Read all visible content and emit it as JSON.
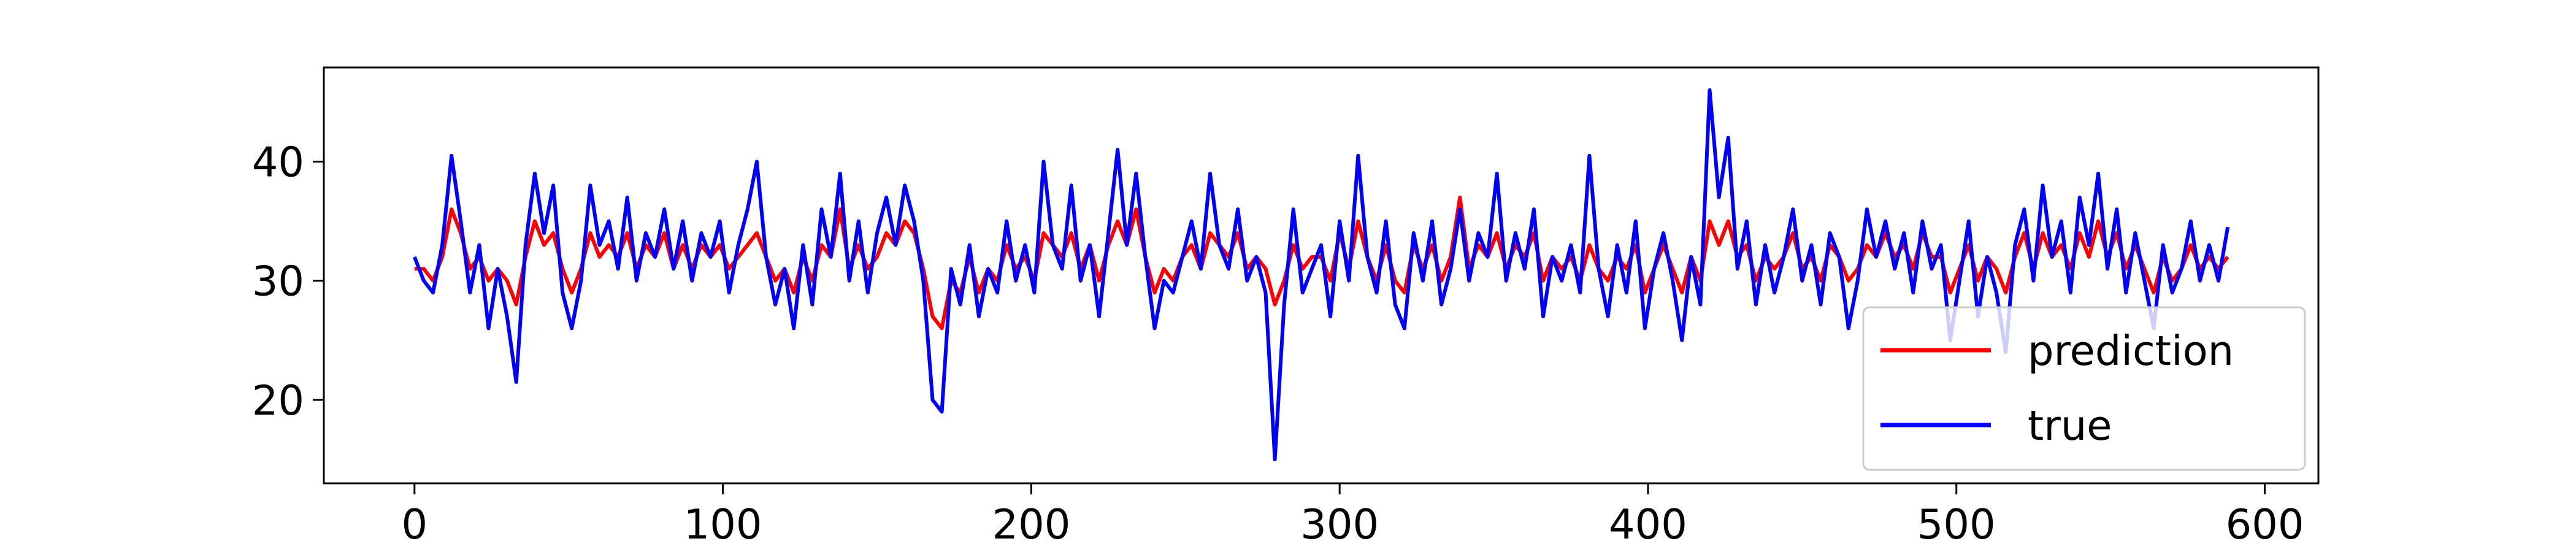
{
  "chart_data": {
    "type": "line",
    "x": [
      0,
      3,
      6,
      9,
      12,
      15,
      18,
      21,
      24,
      27,
      30,
      33,
      36,
      39,
      42,
      45,
      48,
      51,
      54,
      57,
      60,
      63,
      66,
      69,
      72,
      75,
      78,
      81,
      84,
      87,
      90,
      93,
      96,
      99,
      102,
      105,
      108,
      111,
      114,
      117,
      120,
      123,
      126,
      129,
      132,
      135,
      138,
      141,
      144,
      147,
      150,
      153,
      156,
      159,
      162,
      165,
      168,
      171,
      174,
      177,
      180,
      183,
      186,
      189,
      192,
      195,
      198,
      201,
      204,
      207,
      210,
      213,
      216,
      219,
      222,
      225,
      228,
      231,
      234,
      237,
      240,
      243,
      246,
      249,
      252,
      255,
      258,
      261,
      264,
      267,
      270,
      273,
      276,
      279,
      282,
      285,
      288,
      291,
      294,
      297,
      300,
      303,
      306,
      309,
      312,
      315,
      318,
      321,
      324,
      327,
      330,
      333,
      336,
      339,
      342,
      345,
      348,
      351,
      354,
      357,
      360,
      363,
      366,
      369,
      372,
      375,
      378,
      381,
      384,
      387,
      390,
      393,
      396,
      399,
      402,
      405,
      408,
      411,
      414,
      417,
      420,
      423,
      426,
      429,
      432,
      435,
      438,
      441,
      444,
      447,
      450,
      453,
      456,
      459,
      462,
      465,
      468,
      471,
      474,
      477,
      480,
      483,
      486,
      489,
      492,
      495,
      498,
      501,
      504,
      507,
      510,
      513,
      516,
      519,
      522,
      525,
      528,
      531,
      534,
      537,
      540,
      543,
      546,
      549,
      552,
      555,
      558,
      561,
      564,
      567,
      570,
      573,
      576,
      579,
      582,
      585,
      588
    ],
    "series": [
      {
        "name": "prediction",
        "color": "#ff0000",
        "values": [
          31,
          31,
          30,
          32,
          36,
          34,
          31,
          32,
          30,
          31,
          30,
          28,
          32,
          35,
          33,
          34,
          31,
          29,
          31,
          34,
          32,
          33,
          32,
          34,
          31,
          33,
          32,
          34,
          31,
          33,
          31,
          33,
          32,
          33,
          31,
          32,
          33,
          34,
          32,
          30,
          31,
          29,
          32,
          30,
          33,
          32,
          36,
          31,
          33,
          31,
          32,
          34,
          33,
          35,
          34,
          31,
          27,
          26,
          30,
          29,
          32,
          29,
          31,
          30,
          33,
          31,
          32,
          30,
          34,
          33,
          32,
          34,
          31,
          33,
          30,
          33,
          35,
          33,
          36,
          32,
          29,
          31,
          30,
          32,
          33,
          31,
          34,
          33,
          32,
          34,
          31,
          32,
          31,
          28,
          30,
          33,
          31,
          32,
          32,
          30,
          34,
          31,
          35,
          32,
          30,
          33,
          30,
          29,
          33,
          31,
          33,
          30,
          32,
          37,
          31,
          33,
          32,
          34,
          31,
          33,
          32,
          34,
          30,
          32,
          31,
          32,
          30,
          33,
          31,
          30,
          32,
          31,
          33,
          29,
          31,
          33,
          31,
          29,
          32,
          30,
          35,
          33,
          35,
          32,
          33,
          30,
          32,
          31,
          32,
          34,
          31,
          32,
          30,
          33,
          32,
          30,
          31,
          33,
          32,
          34,
          32,
          33,
          31,
          34,
          32,
          32,
          29,
          31,
          33,
          30,
          32,
          31,
          29,
          32,
          34,
          31,
          34,
          32,
          33,
          31,
          34,
          32,
          35,
          32,
          34,
          31,
          33,
          31,
          29,
          32,
          30,
          31,
          33,
          31,
          32,
          31,
          32
        ]
      },
      {
        "name": "true",
        "color": "#0000ff",
        "values": [
          32,
          30,
          29,
          33,
          40.5,
          35,
          29,
          33,
          26,
          31,
          27,
          21.5,
          33,
          39,
          34,
          38,
          29,
          26,
          30,
          38,
          33,
          35,
          31,
          37,
          30,
          34,
          32,
          36,
          31,
          35,
          30,
          34,
          32,
          35,
          29,
          33,
          36,
          40,
          32,
          28,
          31,
          26,
          33,
          28,
          36,
          32,
          39,
          30,
          35,
          29,
          34,
          37,
          33,
          38,
          35,
          30,
          20,
          19,
          31,
          28,
          33,
          27,
          31,
          29,
          35,
          30,
          33,
          29,
          40,
          33,
          31,
          38,
          30,
          33,
          27,
          34,
          41,
          33,
          39,
          32,
          26,
          30,
          29,
          32,
          35,
          31,
          39,
          33,
          31,
          36,
          30,
          32,
          29,
          15,
          28,
          36,
          29,
          31,
          33,
          27,
          35,
          30,
          40.5,
          32,
          29,
          35,
          28,
          26,
          34,
          30,
          35,
          28,
          31,
          36,
          30,
          34,
          32,
          39,
          30,
          34,
          31,
          36,
          27,
          32,
          30,
          33,
          29,
          40.5,
          31,
          27,
          33,
          29,
          35,
          26,
          31,
          34,
          30,
          25,
          32,
          28,
          46,
          37,
          42,
          31,
          35,
          28,
          33,
          29,
          32,
          36,
          30,
          33,
          28,
          34,
          32,
          26,
          30,
          36,
          32,
          35,
          31,
          34,
          29,
          35,
          31,
          33,
          25,
          30,
          35,
          27,
          32,
          29,
          24,
          33,
          36,
          30,
          38,
          32,
          35,
          29,
          37,
          33,
          39,
          31,
          36,
          29,
          34,
          30,
          26,
          33,
          29,
          31,
          35,
          30,
          33,
          30,
          34.5
        ]
      }
    ],
    "xlim": [
      -29.4,
      617.4
    ],
    "ylim": [
      13.0,
      47.9
    ],
    "xticks": [
      0,
      100,
      200,
      300,
      400,
      500,
      600
    ],
    "yticks": [
      20,
      30,
      40
    ],
    "legend": "lower right"
  }
}
